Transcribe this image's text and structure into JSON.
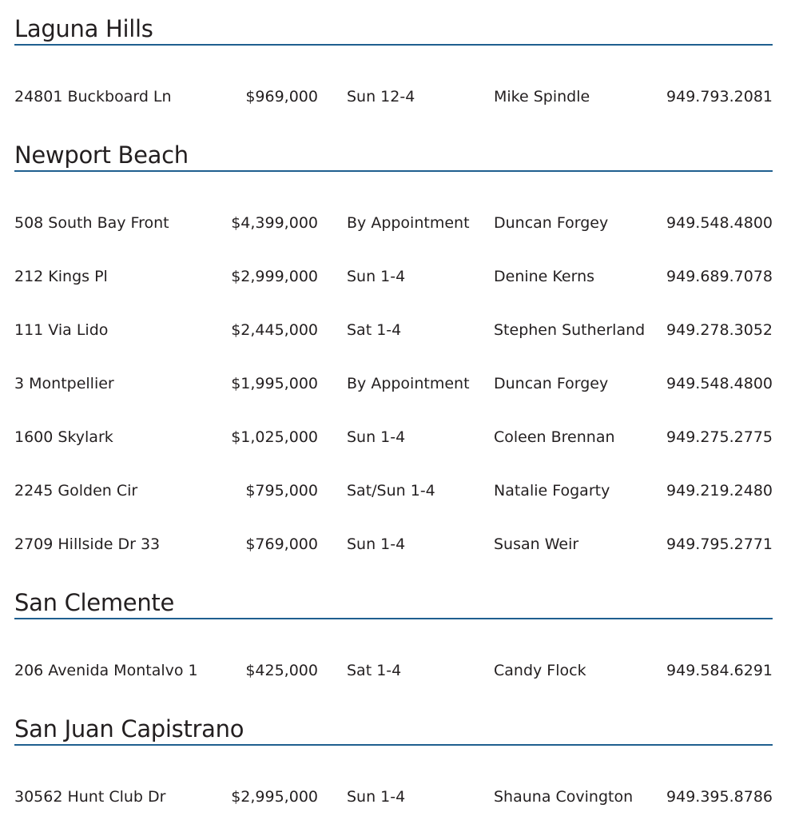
{
  "accent_color": "#1f5f8f",
  "sections": [
    {
      "city": "Laguna Hills",
      "listings": [
        {
          "address": "24801 Buckboard Ln",
          "price": "$969,000",
          "open": "Sun 12-4",
          "agent": "Mike Spindle",
          "phone": "949.793.2081"
        }
      ]
    },
    {
      "city": "Newport Beach",
      "listings": [
        {
          "address": "508 South Bay Front",
          "price": "$4,399,000",
          "open": "By  Appointment",
          "agent": "Duncan Forgey",
          "phone": "949.548.4800"
        },
        {
          "address": "212 Kings Pl",
          "price": "$2,999,000",
          "open": "Sun 1-4",
          "agent": "Denine Kerns",
          "phone": "949.689.7078"
        },
        {
          "address": "111 Via Lido",
          "price": "$2,445,000",
          "open": "Sat 1-4",
          "agent": "Stephen Sutherland",
          "phone": "949.278.3052"
        },
        {
          "address": "3 Montpellier",
          "price": "$1,995,000",
          "open": "By Appointment",
          "agent": "Duncan Forgey",
          "phone": "949.548.4800"
        },
        {
          "address": "1600 Skylark",
          "price": "$1,025,000",
          "open": "Sun 1-4",
          "agent": "Coleen Brennan",
          "phone": "949.275.2775"
        },
        {
          "address": "2245 Golden Cir",
          "price": "$795,000",
          "open": "Sat/Sun 1-4",
          "agent": "Natalie Fogarty",
          "phone": "949.219.2480"
        },
        {
          "address": "2709 Hillside Dr 33",
          "price": "$769,000",
          "open": "Sun 1-4",
          "agent": "Susan Weir",
          "phone": "949.795.2771"
        }
      ]
    },
    {
      "city": "San Clemente",
      "listings": [
        {
          "address": "206 Avenida Montalvo 1",
          "price": "$425,000",
          "open": "Sat 1-4",
          "agent": "Candy Flock",
          "phone": "949.584.6291"
        }
      ]
    },
    {
      "city": "San Juan Capistrano",
      "listings": [
        {
          "address": "30562 Hunt Club Dr",
          "price": "$2,995,000",
          "open": "Sun 1-4",
          "agent": "Shauna Covington",
          "phone": "949.395.8786"
        }
      ]
    }
  ]
}
